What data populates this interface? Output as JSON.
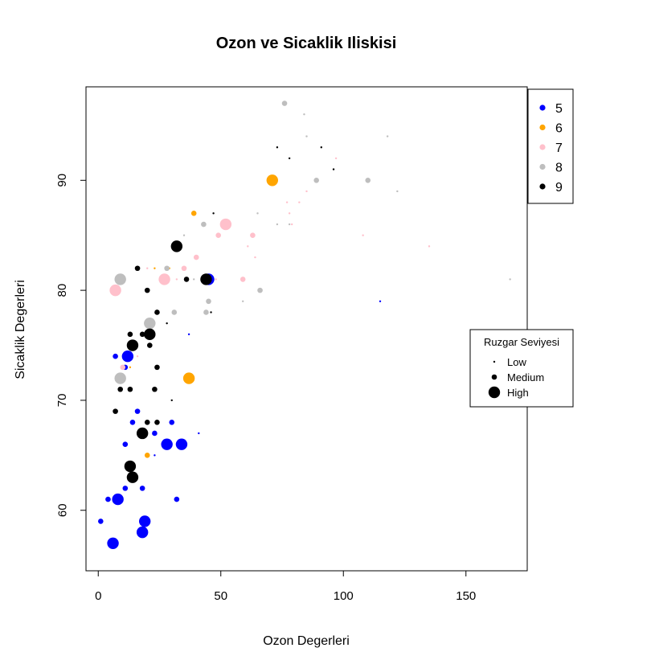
{
  "chart_data": {
    "type": "scatter",
    "title": "Ozon ve Sicaklik Iliskisi",
    "xlabel": "Ozon Degerleri",
    "ylabel": "Sicaklik Degerleri",
    "xlim": [
      -5,
      175
    ],
    "ylim": [
      54.5,
      98.5
    ],
    "xticks": [
      0,
      50,
      100,
      150
    ],
    "yticks": [
      60,
      70,
      80,
      90
    ],
    "grid": false,
    "month_legend": {
      "position": "top-right",
      "entries": [
        {
          "label": "5",
          "color": "#0000ff"
        },
        {
          "label": "6",
          "color": "#ffa500"
        },
        {
          "label": "7",
          "color": "#ffc0cb"
        },
        {
          "label": "8",
          "color": "#bebebe"
        },
        {
          "label": "9",
          "color": "#000000"
        }
      ]
    },
    "wind_legend": {
      "title": "Ruzgar Seviyesi",
      "position": "right",
      "entries": [
        {
          "label": "Low",
          "level": 1
        },
        {
          "label": "Medium",
          "level": 2
        },
        {
          "label": "High",
          "level": 3
        }
      ]
    },
    "series": [
      {
        "name": "5",
        "color": "#0000ff",
        "points": [
          {
            "x": 6,
            "y": 57,
            "level": 3
          },
          {
            "x": 8,
            "y": 61,
            "level": 3
          },
          {
            "x": 4,
            "y": 61,
            "level": 2
          },
          {
            "x": 1,
            "y": 59,
            "level": 2
          },
          {
            "x": 19,
            "y": 59,
            "level": 3
          },
          {
            "x": 18,
            "y": 58,
            "level": 3
          },
          {
            "x": 11,
            "y": 62,
            "level": 2
          },
          {
            "x": 18,
            "y": 62,
            "level": 2
          },
          {
            "x": 11,
            "y": 66,
            "level": 2
          },
          {
            "x": 32,
            "y": 61,
            "level": 2
          },
          {
            "x": 14,
            "y": 64,
            "level": 2
          },
          {
            "x": 23,
            "y": 65,
            "level": 1
          },
          {
            "x": 16,
            "y": 69,
            "level": 2
          },
          {
            "x": 14,
            "y": 68,
            "level": 2
          },
          {
            "x": 7,
            "y": 74,
            "level": 2
          },
          {
            "x": 12,
            "y": 74,
            "level": 3
          },
          {
            "x": 28,
            "y": 66,
            "level": 3
          },
          {
            "x": 34,
            "y": 66,
            "level": 3
          },
          {
            "x": 30,
            "y": 68,
            "level": 2
          },
          {
            "x": 23,
            "y": 67,
            "level": 2
          },
          {
            "x": 41,
            "y": 67,
            "level": 1
          },
          {
            "x": 37,
            "y": 76,
            "level": 1
          },
          {
            "x": 45,
            "y": 81,
            "level": 3
          },
          {
            "x": 115,
            "y": 79,
            "level": 1
          },
          {
            "x": 11,
            "y": 73,
            "level": 2
          }
        ]
      },
      {
        "name": "6",
        "color": "#ffa500",
        "points": [
          {
            "x": 71,
            "y": 90,
            "level": 3
          },
          {
            "x": 39,
            "y": 87,
            "level": 2
          },
          {
            "x": 37,
            "y": 72,
            "level": 3
          },
          {
            "x": 20,
            "y": 65,
            "level": 2
          },
          {
            "x": 23,
            "y": 82,
            "level": 1
          },
          {
            "x": 13,
            "y": 73,
            "level": 1
          },
          {
            "x": 29,
            "y": 82,
            "level": 1
          }
        ]
      },
      {
        "name": "7",
        "color": "#ffc0cb",
        "points": [
          {
            "x": 7,
            "y": 80,
            "level": 3
          },
          {
            "x": 27,
            "y": 81,
            "level": 3
          },
          {
            "x": 52,
            "y": 86,
            "level": 3
          },
          {
            "x": 49,
            "y": 85,
            "level": 2
          },
          {
            "x": 63,
            "y": 85,
            "level": 2
          },
          {
            "x": 40,
            "y": 83,
            "level": 2
          },
          {
            "x": 35,
            "y": 82,
            "level": 2
          },
          {
            "x": 32,
            "y": 81,
            "level": 1
          },
          {
            "x": 59,
            "y": 81,
            "level": 2
          },
          {
            "x": 64,
            "y": 83,
            "level": 1
          },
          {
            "x": 61,
            "y": 84,
            "level": 1
          },
          {
            "x": 79,
            "y": 86,
            "level": 1
          },
          {
            "x": 77,
            "y": 88,
            "level": 1
          },
          {
            "x": 85,
            "y": 89,
            "level": 1
          },
          {
            "x": 97,
            "y": 92,
            "level": 1
          },
          {
            "x": 108,
            "y": 85,
            "level": 1
          },
          {
            "x": 135,
            "y": 84,
            "level": 1
          },
          {
            "x": 82,
            "y": 88,
            "level": 1
          },
          {
            "x": 20,
            "y": 82,
            "level": 1
          },
          {
            "x": 10,
            "y": 73,
            "level": 2
          },
          {
            "x": 16,
            "y": 74,
            "level": 1
          },
          {
            "x": 48,
            "y": 81,
            "level": 1
          },
          {
            "x": 78,
            "y": 87,
            "level": 1
          }
        ]
      },
      {
        "name": "8",
        "color": "#bebebe",
        "points": [
          {
            "x": 9,
            "y": 81,
            "level": 3
          },
          {
            "x": 21,
            "y": 77,
            "level": 3
          },
          {
            "x": 9,
            "y": 72,
            "level": 3
          },
          {
            "x": 28,
            "y": 82,
            "level": 2
          },
          {
            "x": 31,
            "y": 78,
            "level": 2
          },
          {
            "x": 44,
            "y": 78,
            "level": 2
          },
          {
            "x": 45,
            "y": 79,
            "level": 2
          },
          {
            "x": 43,
            "y": 86,
            "level": 2
          },
          {
            "x": 35,
            "y": 85,
            "level": 1
          },
          {
            "x": 66,
            "y": 80,
            "level": 2
          },
          {
            "x": 59,
            "y": 79,
            "level": 1
          },
          {
            "x": 73,
            "y": 86,
            "level": 1
          },
          {
            "x": 78,
            "y": 86,
            "level": 1
          },
          {
            "x": 76,
            "y": 97,
            "level": 2
          },
          {
            "x": 84,
            "y": 96,
            "level": 1
          },
          {
            "x": 85,
            "y": 94,
            "level": 1
          },
          {
            "x": 89,
            "y": 90,
            "level": 2
          },
          {
            "x": 110,
            "y": 90,
            "level": 2
          },
          {
            "x": 118,
            "y": 94,
            "level": 1
          },
          {
            "x": 122,
            "y": 89,
            "level": 1
          },
          {
            "x": 168,
            "y": 81,
            "level": 1
          },
          {
            "x": 65,
            "y": 87,
            "level": 1
          },
          {
            "x": 39,
            "y": 81,
            "level": 1
          }
        ]
      },
      {
        "name": "9",
        "color": "#000000",
        "points": [
          {
            "x": 32,
            "y": 84,
            "level": 3
          },
          {
            "x": 44,
            "y": 81,
            "level": 3
          },
          {
            "x": 21,
            "y": 76,
            "level": 3
          },
          {
            "x": 14,
            "y": 75,
            "level": 3
          },
          {
            "x": 18,
            "y": 67,
            "level": 3
          },
          {
            "x": 14,
            "y": 63,
            "level": 3
          },
          {
            "x": 13,
            "y": 64,
            "level": 3
          },
          {
            "x": 16,
            "y": 82,
            "level": 2
          },
          {
            "x": 20,
            "y": 80,
            "level": 2
          },
          {
            "x": 24,
            "y": 78,
            "level": 2
          },
          {
            "x": 21,
            "y": 75,
            "level": 2
          },
          {
            "x": 18,
            "y": 76,
            "level": 2
          },
          {
            "x": 13,
            "y": 76,
            "level": 2
          },
          {
            "x": 24,
            "y": 73,
            "level": 2
          },
          {
            "x": 9,
            "y": 71,
            "level": 2
          },
          {
            "x": 13,
            "y": 71,
            "level": 2
          },
          {
            "x": 23,
            "y": 71,
            "level": 2
          },
          {
            "x": 7,
            "y": 69,
            "level": 2
          },
          {
            "x": 20,
            "y": 68,
            "level": 2
          },
          {
            "x": 24,
            "y": 68,
            "level": 2
          },
          {
            "x": 30,
            "y": 70,
            "level": 1
          },
          {
            "x": 28,
            "y": 77,
            "level": 1
          },
          {
            "x": 46,
            "y": 78,
            "level": 1
          },
          {
            "x": 47,
            "y": 87,
            "level": 1
          },
          {
            "x": 36,
            "y": 81,
            "level": 2
          },
          {
            "x": 96,
            "y": 91,
            "level": 1
          },
          {
            "x": 78,
            "y": 92,
            "level": 1
          },
          {
            "x": 73,
            "y": 93,
            "level": 1
          },
          {
            "x": 91,
            "y": 93,
            "level": 1
          }
        ]
      }
    ]
  }
}
